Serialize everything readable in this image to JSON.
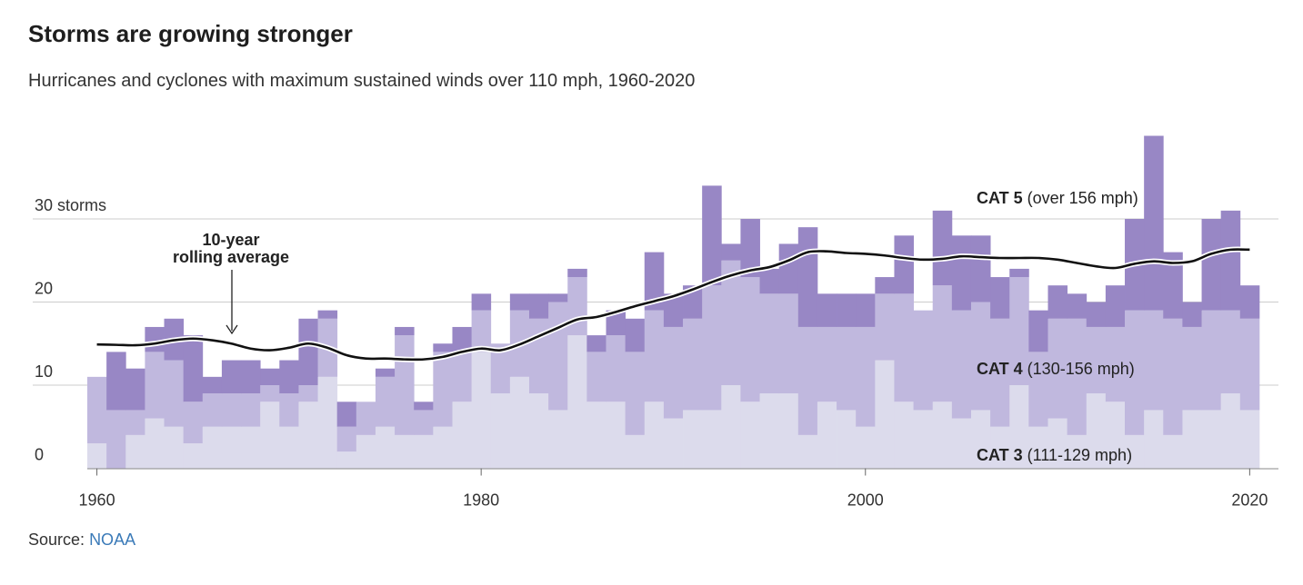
{
  "header": {
    "title": "Storms are growing stronger",
    "subtitle": "Hurricanes and cyclones with maximum sustained winds over 110 mph, 1960-2020"
  },
  "footer": {
    "source_label": "Source:",
    "source_link": "NOAA"
  },
  "colors": {
    "cat3": "#dcdbec",
    "cat4": "#c0b8de",
    "cat5": "#9887c5",
    "average": "#111111",
    "gridline": "#cccccc"
  },
  "chart_data": {
    "type": "bar",
    "stacked": true,
    "x": [
      1960,
      1961,
      1962,
      1963,
      1964,
      1965,
      1966,
      1967,
      1968,
      1969,
      1970,
      1971,
      1972,
      1973,
      1974,
      1975,
      1976,
      1977,
      1978,
      1979,
      1980,
      1981,
      1982,
      1983,
      1984,
      1985,
      1986,
      1987,
      1988,
      1989,
      1990,
      1991,
      1992,
      1993,
      1994,
      1995,
      1996,
      1997,
      1998,
      1999,
      2000,
      2001,
      2002,
      2003,
      2004,
      2005,
      2006,
      2007,
      2008,
      2009,
      2010,
      2011,
      2012,
      2013,
      2014,
      2015,
      2016,
      2017,
      2018,
      2019,
      2020
    ],
    "series": [
      {
        "name": "CAT 3",
        "values": [
          3,
          0,
          4,
          6,
          5,
          3,
          5,
          5,
          5,
          8,
          5,
          8,
          11,
          2,
          4,
          5,
          4,
          4,
          5,
          8,
          14,
          9,
          11,
          9,
          7,
          16,
          8,
          8,
          4,
          8,
          6,
          7,
          7,
          10,
          8,
          9,
          9,
          4,
          8,
          7,
          5,
          13,
          8,
          7,
          8,
          6,
          7,
          5,
          10,
          5,
          6,
          4,
          9,
          8,
          4,
          7,
          4,
          7,
          7,
          9,
          7
        ]
      },
      {
        "name": "CAT 4",
        "values": [
          8,
          7,
          3,
          8,
          8,
          5,
          4,
          4,
          4,
          2,
          4,
          2,
          7,
          3,
          4,
          6,
          12,
          3,
          9,
          6,
          5,
          6,
          8,
          9,
          13,
          7,
          6,
          8,
          10,
          11,
          11,
          11,
          15,
          15,
          15,
          12,
          12,
          13,
          9,
          10,
          12,
          8,
          13,
          12,
          14,
          13,
          13,
          13,
          13,
          9,
          12,
          14,
          8,
          9,
          15,
          12,
          14,
          10,
          12,
          10,
          11
        ]
      },
      {
        "name": "CAT 5",
        "values": [
          0,
          7,
          5,
          3,
          5,
          8,
          2,
          4,
          4,
          2,
          4,
          8,
          1,
          3,
          0,
          1,
          1,
          1,
          1,
          3,
          2,
          0,
          2,
          3,
          1,
          1,
          2,
          3,
          4,
          7,
          4,
          4,
          12,
          2,
          7,
          3,
          6,
          12,
          4,
          4,
          4,
          2,
          7,
          0,
          9,
          9,
          8,
          5,
          1,
          5,
          4,
          3,
          3,
          5,
          11,
          21,
          8,
          3,
          11,
          12,
          4
        ]
      }
    ],
    "average": {
      "name": "10-year rolling average",
      "values": [
        14.9,
        14.85,
        14.8,
        15.0,
        15.4,
        15.6,
        15.4,
        15.0,
        14.4,
        14.2,
        14.5,
        15.0,
        14.5,
        13.6,
        13.2,
        13.2,
        13.1,
        13.1,
        13.4,
        14.0,
        14.4,
        14.2,
        14.9,
        15.9,
        16.9,
        17.9,
        18.2,
        18.8,
        19.5,
        20.1,
        20.7,
        21.5,
        22.4,
        23.2,
        23.8,
        24.2,
        25.0,
        26.0,
        26.1,
        25.9,
        25.8,
        25.6,
        25.3,
        25.1,
        25.2,
        25.5,
        25.4,
        25.3,
        25.3,
        25.3,
        25.1,
        24.7,
        24.3,
        24.1,
        24.6,
        24.9,
        24.7,
        24.9,
        25.8,
        26.3,
        26.3
      ]
    },
    "ylim": [
      0,
      40
    ],
    "xlim": [
      1959.5,
      2020.5
    ],
    "y_ticks": [
      0,
      10,
      20,
      30
    ],
    "y_tick_labels": [
      "0",
      "10",
      "20",
      "30 storms"
    ],
    "x_ticks": [
      1960,
      1980,
      2000,
      2020
    ],
    "x_tick_labels": [
      "1960",
      "1980",
      "2000",
      "2020"
    ],
    "grid": true,
    "labels": {
      "cat5_bold": "CAT 5",
      "cat5_range": "(over 156 mph)",
      "cat4_bold": "CAT 4",
      "cat4_range": "(130-156 mph)",
      "cat3_bold": "CAT 3",
      "cat3_range": "(111-129 mph)",
      "average_line1": "10-year",
      "average_line2": "rolling average"
    }
  }
}
